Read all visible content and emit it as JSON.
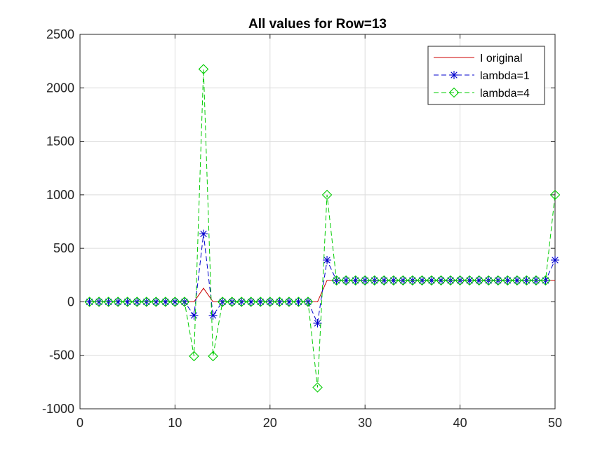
{
  "chart_data": {
    "type": "line",
    "title": "All values for Row=13",
    "xlabel": "",
    "ylabel": "",
    "xlim": [
      0,
      50
    ],
    "ylim": [
      -1000,
      2500
    ],
    "xticks": [
      0,
      10,
      20,
      30,
      40,
      50
    ],
    "yticks": [
      -1000,
      -500,
      0,
      500,
      1000,
      1500,
      2000,
      2500
    ],
    "grid": true,
    "legend_position": "top-right",
    "x": [
      1,
      2,
      3,
      4,
      5,
      6,
      7,
      8,
      9,
      10,
      11,
      12,
      13,
      14,
      15,
      16,
      17,
      18,
      19,
      20,
      21,
      22,
      23,
      24,
      25,
      26,
      27,
      28,
      29,
      30,
      31,
      32,
      33,
      34,
      35,
      36,
      37,
      38,
      39,
      40,
      41,
      42,
      43,
      44,
      45,
      46,
      47,
      48,
      49,
      50
    ],
    "series": [
      {
        "name": "I original",
        "color": "#cc0000",
        "style": "solid",
        "marker": "none",
        "values": [
          0,
          0,
          0,
          0,
          0,
          0,
          0,
          0,
          0,
          0,
          0,
          0,
          127,
          0,
          0,
          0,
          0,
          0,
          0,
          0,
          0,
          0,
          0,
          0,
          0,
          200,
          200,
          200,
          200,
          200,
          200,
          200,
          200,
          200,
          200,
          200,
          200,
          200,
          200,
          200,
          200,
          200,
          200,
          200,
          200,
          200,
          200,
          200,
          200,
          200
        ]
      },
      {
        "name": "lambda=1",
        "color": "#0000cc",
        "style": "dashed",
        "marker": "asterisk",
        "values": [
          0,
          0,
          0,
          0,
          0,
          0,
          0,
          0,
          0,
          0,
          0,
          -127,
          635,
          -127,
          0,
          0,
          0,
          0,
          0,
          0,
          0,
          0,
          0,
          0,
          -200,
          390,
          200,
          200,
          200,
          200,
          200,
          200,
          200,
          200,
          200,
          200,
          200,
          200,
          200,
          200,
          200,
          200,
          200,
          200,
          200,
          200,
          200,
          200,
          200,
          390
        ]
      },
      {
        "name": "lambda=4",
        "color": "#00cc00",
        "style": "dashed",
        "marker": "diamond",
        "values": [
          0,
          0,
          0,
          0,
          0,
          0,
          0,
          0,
          0,
          0,
          0,
          -508,
          2175,
          -508,
          0,
          0,
          0,
          0,
          0,
          0,
          0,
          0,
          0,
          0,
          -800,
          1000,
          200,
          200,
          200,
          200,
          200,
          200,
          200,
          200,
          200,
          200,
          200,
          200,
          200,
          200,
          200,
          200,
          200,
          200,
          200,
          200,
          200,
          200,
          200,
          1000
        ]
      }
    ]
  }
}
